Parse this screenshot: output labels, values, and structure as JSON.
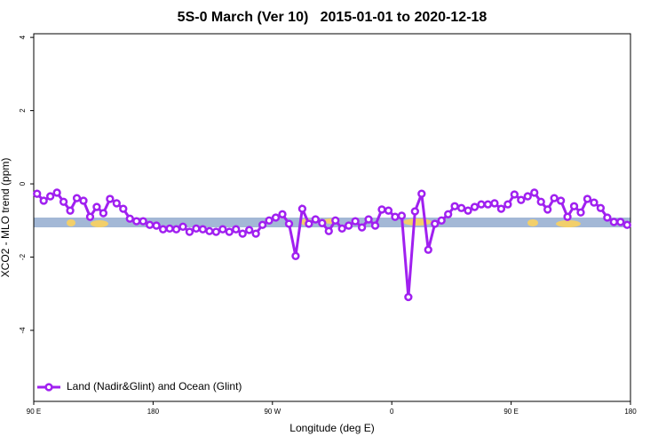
{
  "chart_data": {
    "type": "line",
    "title": "5S-0 March (Ver 10)   2015-01-01 to 2020-12-18",
    "x_label": "Longitude (deg E)",
    "y_label": "XCO2 - MLO trend (ppm)",
    "xlim": [
      90,
      540
    ],
    "xticks": [
      {
        "value": 90,
        "label": "90 E"
      },
      180,
      {
        "value": 270,
        "label": "90 W"
      },
      {
        "value": 360,
        "label": "0"
      },
      {
        "value": 450,
        "label": "90 E"
      },
      {
        "value": 540,
        "label": "180"
      }
    ],
    "ylim": [
      -5.94,
      4.1
    ],
    "yticks": [
      4,
      2,
      0,
      -2,
      -4
    ],
    "legend": "bottom-left",
    "series": [
      {
        "name": "Land (Nadir&Glint) and Ocean (Glint)",
        "color": "#a020f0",
        "x": [
          92.5,
          97.5,
          102.5,
          107.5,
          112.5,
          117.5,
          122.5,
          127.5,
          132.5,
          137.5,
          142.5,
          147.5,
          152.5,
          157.5,
          162.5,
          167.5,
          172.5,
          177.5,
          182.5,
          187.5,
          192.5,
          197.5,
          202.5,
          207.5,
          212.5,
          217.5,
          222.5,
          227.5,
          232.5,
          237.5,
          242.5,
          247.5,
          252.5,
          257.5,
          262.5,
          267.5,
          272.5,
          277.5,
          282.5,
          287.5,
          292.5,
          297.5,
          302.5,
          307.5,
          312.5,
          317.5,
          322.5,
          327.5,
          332.5,
          337.5,
          342.5,
          347.5,
          352.5,
          357.5,
          362.5,
          367.5,
          372.5,
          377.5,
          382.5,
          387.5,
          392.5,
          397.5,
          402.5,
          407.5,
          412.5,
          417.5,
          422.5,
          427.5,
          432.5,
          437.5,
          442.5,
          447.5,
          452.5,
          457.5,
          462.5,
          467.5,
          472.5,
          477.5,
          482.5,
          487.5,
          492.5,
          497.5,
          502.5,
          507.5,
          512.5,
          517.5,
          522.5,
          527.5,
          532.5,
          537.5
        ],
        "values": [
          -0.27,
          -0.46,
          -0.34,
          -0.24,
          -0.49,
          -0.73,
          -0.39,
          -0.46,
          -0.9,
          -0.63,
          -0.8,
          -0.41,
          -0.53,
          -0.68,
          -0.95,
          -1.02,
          -1.02,
          -1.12,
          -1.14,
          -1.24,
          -1.22,
          -1.24,
          -1.17,
          -1.31,
          -1.22,
          -1.24,
          -1.29,
          -1.31,
          -1.24,
          -1.31,
          -1.24,
          -1.36,
          -1.26,
          -1.36,
          -1.12,
          -1.0,
          -0.92,
          -0.83,
          -1.09,
          -1.97,
          -0.68,
          -1.09,
          -0.97,
          -1.07,
          -1.29,
          -1.0,
          -1.22,
          -1.14,
          -1.02,
          -1.19,
          -0.97,
          -1.14,
          -0.7,
          -0.73,
          -0.9,
          -0.87,
          -3.09,
          -0.75,
          -0.27,
          -1.8,
          -1.09,
          -1.0,
          -0.83,
          -0.61,
          -0.66,
          -0.73,
          -0.63,
          -0.56,
          -0.56,
          -0.53,
          -0.68,
          -0.56,
          -0.29,
          -0.44,
          -0.34,
          -0.24,
          -0.49,
          -0.7,
          -0.39,
          -0.46,
          -0.9,
          -0.61,
          -0.78,
          -0.41,
          -0.51,
          -0.66,
          -0.92,
          -1.04,
          -1.04,
          -1.12
        ]
      }
    ]
  }
}
